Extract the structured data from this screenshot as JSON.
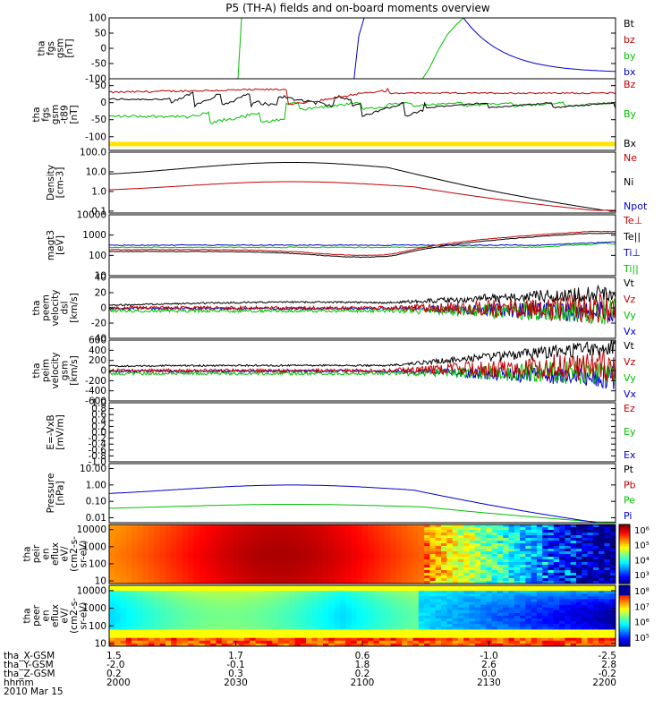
{
  "chart_data": {
    "type": "line",
    "title": "P5 (TH-A) fields and on-board moments overview",
    "time_ticks": [
      "2000",
      "2030",
      "2100",
      "2130",
      "2200"
    ],
    "panels": [
      {
        "id": "fgs",
        "ylabel": [
          "tha",
          "fgs",
          "gsm",
          "[nT]"
        ],
        "yscale": "linear",
        "ylim": [
          -100,
          100
        ],
        "yticks": [
          "100",
          "50",
          "0",
          "-50",
          "-100"
        ],
        "series": [
          {
            "name": "Bt",
            "color": "#000000"
          },
          {
            "name": "bz",
            "color": "#c00000"
          },
          {
            "name": "by",
            "color": "#00c000"
          },
          {
            "name": "bx",
            "color": "#0000c8"
          }
        ]
      },
      {
        "id": "fgs_t89",
        "ylabel": [
          "tha",
          "fgs",
          "gsm",
          "-t89",
          "[nT]"
        ],
        "yscale": "linear",
        "ylim": [
          -140,
          70
        ],
        "yticks": [
          "50",
          "0",
          "-50",
          "-100"
        ],
        "series": [
          {
            "name": "Bz",
            "color": "#c00000"
          },
          {
            "name": "By",
            "color": "#00c000"
          },
          {
            "name": "Bx",
            "color": "#000000"
          }
        ]
      },
      {
        "id": "density",
        "ylabel": [
          "Density",
          "[cm-3]"
        ],
        "yscale": "log",
        "ylim": [
          0.08,
          100
        ],
        "yticks": [
          "100.0",
          "10.0",
          "1.0",
          "0.1"
        ],
        "series": [
          {
            "name": "Ne",
            "color": "#c00000"
          },
          {
            "name": "Ni",
            "color": "#000000"
          },
          {
            "name": "Npot",
            "color": "#0000c8"
          }
        ]
      },
      {
        "id": "temp",
        "ylabel": [
          "magt3",
          "[eV]"
        ],
        "yscale": "log",
        "ylim": [
          10,
          10000
        ],
        "yticks": [
          "10000",
          "1000",
          "100",
          "10"
        ],
        "series": [
          {
            "name": "Te⊥",
            "color": "#c00000"
          },
          {
            "name": "Te||",
            "color": "#000000"
          },
          {
            "name": "Ti⊥",
            "color": "#0000c8"
          },
          {
            "name": "Ti||",
            "color": "#00c000"
          }
        ]
      },
      {
        "id": "peem",
        "ylabel": [
          "tha",
          "peem",
          "velocity",
          "dsl",
          "[km/s]"
        ],
        "yscale": "linear",
        "ylim": [
          -40,
          40
        ],
        "yticks": [
          "40",
          "20",
          "0",
          "-20",
          "-40"
        ],
        "series": [
          {
            "name": "Vt",
            "color": "#000000"
          },
          {
            "name": "Vz",
            "color": "#c00000"
          },
          {
            "name": "Vy",
            "color": "#00c000"
          },
          {
            "name": "Vx",
            "color": "#0000c8"
          }
        ]
      },
      {
        "id": "peim",
        "ylabel": [
          "tha",
          "peim",
          "velocity",
          "gsm",
          "[km/s]"
        ],
        "yscale": "linear",
        "ylim": [
          -600,
          600
        ],
        "yticks": [
          "600",
          "400",
          "200",
          "0",
          "-200",
          "-400",
          "-600"
        ],
        "series": [
          {
            "name": "Vt",
            "color": "#000000"
          },
          {
            "name": "Vz",
            "color": "#c00000"
          },
          {
            "name": "Vy",
            "color": "#00c000"
          },
          {
            "name": "Vx",
            "color": "#0000c8"
          }
        ]
      },
      {
        "id": "efield",
        "ylabel": [
          "E=-VxB",
          "[mV/m]"
        ],
        "yscale": "linear",
        "ylim": [
          -1,
          1
        ],
        "yticks": [
          "1.0",
          "0.8",
          "0.6",
          "0.4",
          "0.2",
          "0.0",
          "-0.2",
          "-0.4",
          "-0.6",
          "-0.8",
          "-1.0"
        ],
        "series": [
          {
            "name": "Ez",
            "color": "#c00000"
          },
          {
            "name": "Ey",
            "color": "#00c000"
          },
          {
            "name": "Ex",
            "color": "#0000c8"
          }
        ]
      },
      {
        "id": "pressure",
        "ylabel": [
          "Pressure",
          "[nPa]"
        ],
        "yscale": "log",
        "ylim": [
          0.005,
          20
        ],
        "yticks": [
          "10.00",
          "1.00",
          "0.10",
          "0.01"
        ],
        "series": [
          {
            "name": "Pt",
            "color": "#000000"
          },
          {
            "name": "Pb",
            "color": "#c00000"
          },
          {
            "name": "Pe",
            "color": "#00c000"
          },
          {
            "name": "Pi",
            "color": "#0000c8"
          }
        ]
      },
      {
        "id": "peir",
        "ylabel": [
          "tha",
          "peir",
          "en",
          "eflux",
          "eV/",
          "(cm2-s-",
          "sr-eV)"
        ],
        "yscale": "log",
        "ylim": [
          7,
          20000
        ],
        "yticks": [
          "10000",
          "1000",
          "100",
          "10"
        ],
        "colorbar_ticks": [
          "10⁶",
          "10⁵",
          "10⁴",
          "10³"
        ]
      },
      {
        "id": "peer",
        "ylabel": [
          "tha",
          "peer",
          "en",
          "eflux",
          "eV/",
          "(cm2-s-",
          "sr-eV)"
        ],
        "yscale": "log",
        "ylim": [
          7,
          20000
        ],
        "yticks": [
          "10000",
          "1000",
          "100",
          "10"
        ],
        "colorbar_ticks": [
          "10⁸",
          "10⁷",
          "10⁶",
          "10⁵"
        ]
      }
    ],
    "ephemeris": {
      "rows": [
        {
          "label": "tha_X-GSM",
          "values": [
            "1.5",
            "1.7",
            "0.6",
            "-1.0",
            "-2.5"
          ]
        },
        {
          "label": "tha_Y-GSM",
          "values": [
            "-2.0",
            "-0.1",
            "1.8",
            "2.6",
            "2.8"
          ]
        },
        {
          "label": "tha_Z-GSM",
          "values": [
            "0.2",
            "0.3",
            "0.2",
            "0.0",
            "-0.2"
          ]
        },
        {
          "label": "hhmm",
          "values": [
            "2000",
            "2030",
            "2100",
            "2130",
            "2200"
          ]
        },
        {
          "label": "2010 Mar 15",
          "values": []
        }
      ]
    }
  }
}
